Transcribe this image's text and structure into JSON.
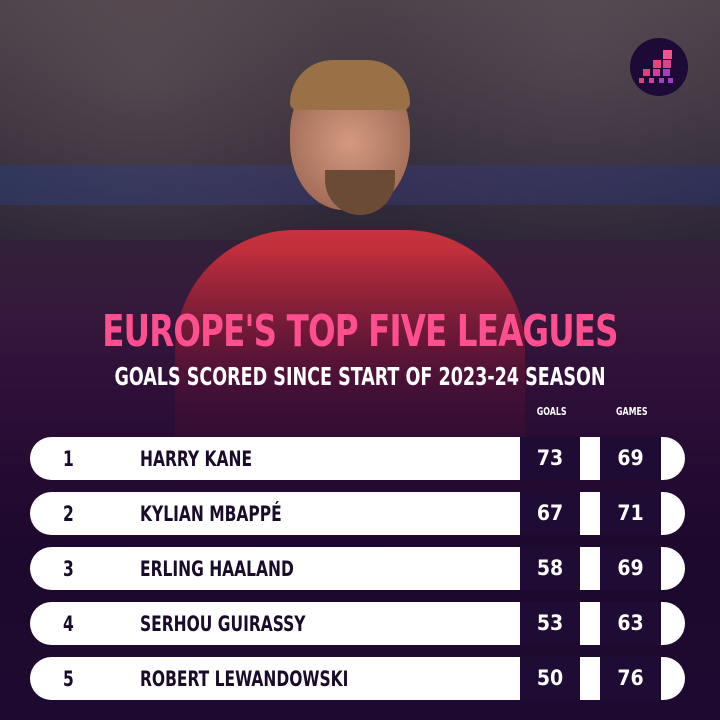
{
  "title": "EUROPE'S TOP FIVE LEAGUES",
  "subtitle": "GOALS SCORED SINCE START OF 2023-24 SEASON",
  "columns": {
    "goals": "GOALS",
    "games": "GAMES"
  },
  "colors": {
    "accent": "#ff4f8e",
    "dark": "#1e0c34",
    "row": "#ffffff"
  },
  "rows": [
    {
      "rank": "1",
      "name": "HARRY KANE",
      "goals": "73",
      "games": "69"
    },
    {
      "rank": "2",
      "name": "KYLIAN MBAPPÉ",
      "goals": "67",
      "games": "71"
    },
    {
      "rank": "3",
      "name": "ERLING HAALAND",
      "goals": "58",
      "games": "69"
    },
    {
      "rank": "4",
      "name": "SERHOU GUIRASSY",
      "goals": "53",
      "games": "63"
    },
    {
      "rank": "5",
      "name": "ROBERT LEWANDOWSKI",
      "goals": "50",
      "games": "76"
    }
  ]
}
